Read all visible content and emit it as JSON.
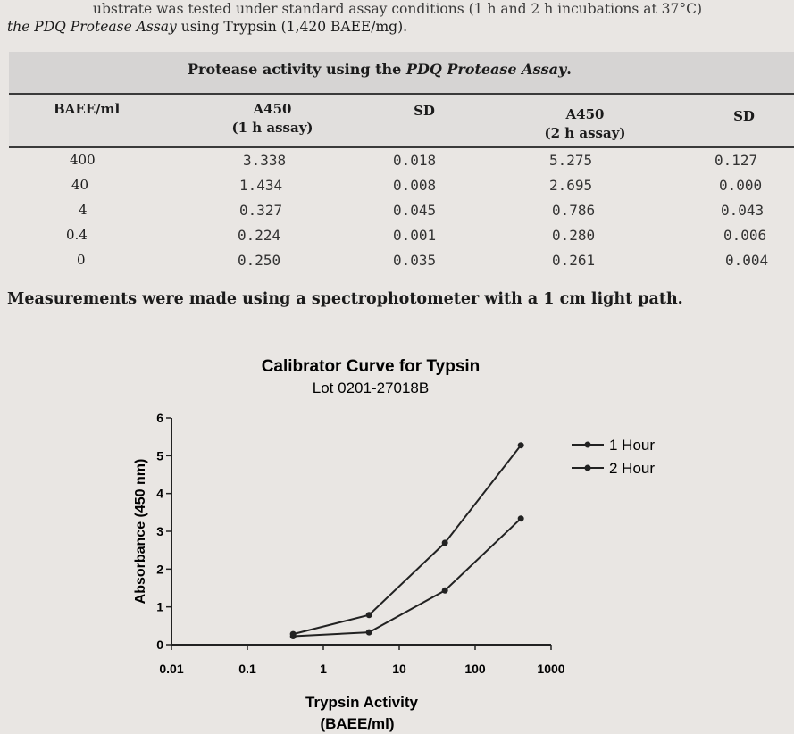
{
  "intro": {
    "line1": "ubstrate was tested under standard assay conditions (1 h and 2 h incubations at 37°C)",
    "line2_em": "the PDQ Protease Assay",
    "line2_rest": " using Trypsin (1,420 BAEE/mg)."
  },
  "table": {
    "title_prefix": "Protease activity using the ",
    "title_em": "PDQ Protease Assay",
    "title_suffix": ".",
    "headers": {
      "baee": "BAEE/ml",
      "a450_1h_line1": "A450",
      "a450_1h_line2": "(1 h assay)",
      "sd1": "SD",
      "a450_2h_line1": "A450",
      "a450_2h_line2": "(2 h assay)",
      "sd2": "SD"
    },
    "rows": [
      {
        "baee": "400",
        "a1": "3.338",
        "sd1": "0.018",
        "a2": "5.275",
        "sd2": "0.127"
      },
      {
        "baee": "40",
        "a1": "1.434",
        "sd1": "0.008",
        "a2": "2.695",
        "sd2": "0.000"
      },
      {
        "baee": "4",
        "a1": "0.327",
        "sd1": "0.045",
        "a2": "0.786",
        "sd2": "0.043"
      },
      {
        "baee": "0.4",
        "a1": "0.224",
        "sd1": "0.001",
        "a2": "0.280",
        "sd2": "0.006"
      },
      {
        "baee": "0",
        "a1": "0.250",
        "sd1": "0.035",
        "a2": "0.261",
        "sd2": "0.004"
      }
    ],
    "note": "Measurements were made using a spectrophotometer with a 1 cm light path."
  },
  "chart_data": {
    "type": "line",
    "title": "Calibrator Curve for Typsin",
    "subtitle": "Lot 0201-27018B",
    "xlabel_line1": "Trypsin Activity",
    "xlabel_line2": "(BAEE/ml)",
    "ylabel": "Absorbance (450 nm)",
    "xscale": "log",
    "xlim": [
      0.01,
      1000
    ],
    "ylim": [
      0,
      6
    ],
    "xticks": [
      "0.01",
      "0.1",
      "1",
      "10",
      "100",
      "1000"
    ],
    "xtick_values": [
      0.01,
      0.1,
      1,
      10,
      100,
      1000
    ],
    "yticks": [
      "0",
      "1",
      "2",
      "3",
      "4",
      "5",
      "6"
    ],
    "ytick_values": [
      0,
      1,
      2,
      3,
      4,
      5,
      6
    ],
    "legend_position": "top-right",
    "grid": false,
    "line_color": "#222222",
    "series": [
      {
        "name": "1 Hour",
        "x": [
          0.4,
          4,
          40,
          400
        ],
        "y": [
          0.224,
          0.327,
          1.434,
          3.338
        ]
      },
      {
        "name": "2 Hour",
        "x": [
          0.4,
          4,
          40,
          400
        ],
        "y": [
          0.28,
          0.786,
          2.695,
          5.275
        ]
      }
    ]
  }
}
